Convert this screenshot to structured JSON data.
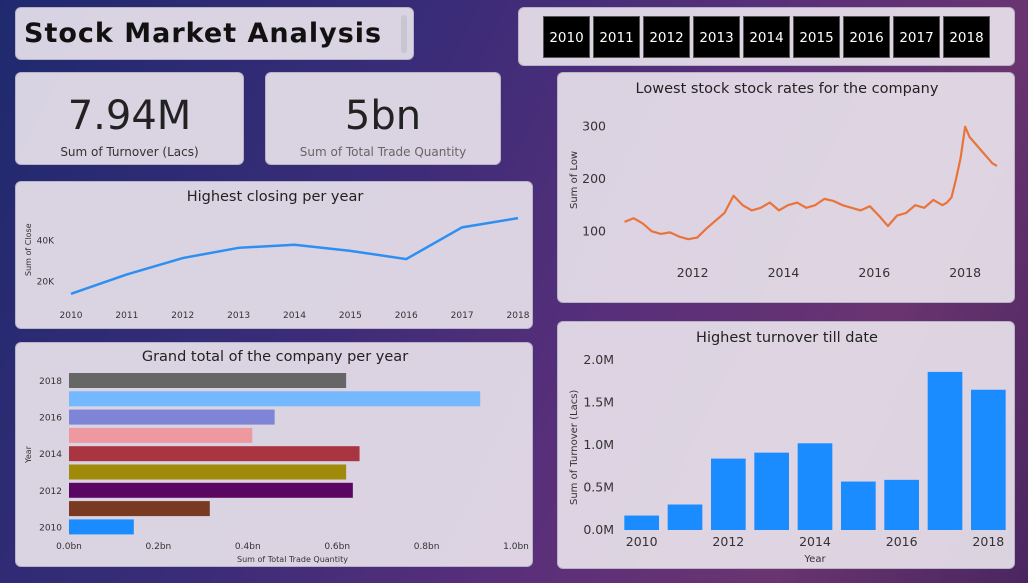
{
  "header": {
    "title": "Stock Market Analysis"
  },
  "year_slicer": {
    "years": [
      "2010",
      "2011",
      "2012",
      "2013",
      "2014",
      "2015",
      "2016",
      "2017",
      "2018"
    ]
  },
  "kpis": [
    {
      "value": "7.94M",
      "label": "Sum of Turnover (Lacs)"
    },
    {
      "value": "5bn",
      "label": "Sum of Total Trade Quantity"
    }
  ],
  "colors": {
    "line_blue": "#2e8ff2",
    "line_orange": "#e8743b",
    "bar_blue": "#1a8cff"
  },
  "chart_data": [
    {
      "id": "close",
      "type": "line",
      "title": "Highest closing per year",
      "ylabel": "Sum of Close",
      "xlabel": "",
      "x": [
        2010,
        2011,
        2012,
        2013,
        2014,
        2015,
        2016,
        2017,
        2018
      ],
      "x_ticks": [
        "2010",
        "2011",
        "2012",
        "2013",
        "2014",
        "2015",
        "2016",
        "2017",
        "2018"
      ],
      "values": [
        14000,
        23500,
        31500,
        36500,
        38000,
        35000,
        31000,
        46500,
        51000
      ],
      "y_ticks": [
        {
          "v": 20000,
          "label": "20K"
        },
        {
          "v": 40000,
          "label": "40K"
        }
      ],
      "ylim": [
        11000,
        54000
      ]
    },
    {
      "id": "grand",
      "type": "bar",
      "orientation": "horizontal",
      "title": "Grand total of the company per year",
      "xlabel": "Sum of Total Trade Quantity",
      "ylabel": "Year",
      "categories": [
        "2018",
        "2017",
        "2016",
        "2015",
        "2014",
        "2013",
        "2012",
        "2011",
        "2010"
      ],
      "values": [
        0.62,
        0.92,
        0.46,
        0.41,
        0.65,
        0.62,
        0.635,
        0.315,
        0.145
      ],
      "colors": [
        "#666666",
        "#74b9ff",
        "#7f85d6",
        "#ee98a0",
        "#a8353f",
        "#a08a0a",
        "#5a0764",
        "#7a3a22",
        "#1a8cff"
      ],
      "y_tick_labels": [
        "2018",
        "",
        "2016",
        "",
        "2014",
        "",
        "2012",
        "",
        "2010"
      ],
      "x_ticks": [
        {
          "v": 0,
          "label": "0.0bn"
        },
        {
          "v": 0.2,
          "label": "0.2bn"
        },
        {
          "v": 0.4,
          "label": "0.4bn"
        },
        {
          "v": 0.6,
          "label": "0.6bn"
        },
        {
          "v": 0.8,
          "label": "0.8bn"
        },
        {
          "v": 1.0,
          "label": "1.0bn"
        }
      ],
      "xlim": [
        0,
        1.0
      ]
    },
    {
      "id": "low",
      "type": "line",
      "title": "Lowest stock stock rates for the company",
      "ylabel": "Sum of Low",
      "xlabel": "",
      "x": [
        2010.5,
        2010.7,
        2010.9,
        2011.1,
        2011.3,
        2011.5,
        2011.7,
        2011.9,
        2012.1,
        2012.3,
        2012.5,
        2012.7,
        2012.9,
        2013.1,
        2013.3,
        2013.5,
        2013.7,
        2013.9,
        2014.1,
        2014.3,
        2014.5,
        2014.7,
        2014.9,
        2015.1,
        2015.3,
        2015.5,
        2015.7,
        2015.9,
        2016.1,
        2016.3,
        2016.5,
        2016.7,
        2016.9,
        2017.1,
        2017.3,
        2017.5,
        2017.6,
        2017.7,
        2017.8,
        2017.9,
        2018.0,
        2018.1,
        2018.2,
        2018.3,
        2018.4,
        2018.5,
        2018.6,
        2018.7
      ],
      "values": [
        118,
        125,
        115,
        100,
        95,
        98,
        90,
        85,
        88,
        105,
        120,
        135,
        168,
        150,
        140,
        145,
        155,
        140,
        150,
        155,
        145,
        150,
        162,
        158,
        150,
        145,
        140,
        148,
        130,
        110,
        130,
        135,
        150,
        145,
        160,
        150,
        155,
        165,
        200,
        240,
        300,
        280,
        270,
        260,
        250,
        240,
        230,
        225
      ],
      "x_ticks": [
        {
          "v": 2012,
          "label": "2012"
        },
        {
          "v": 2014,
          "label": "2014"
        },
        {
          "v": 2016,
          "label": "2016"
        },
        {
          "v": 2018,
          "label": "2018"
        }
      ],
      "y_ticks": [
        {
          "v": 100,
          "label": "100"
        },
        {
          "v": 200,
          "label": "200"
        },
        {
          "v": 300,
          "label": "300"
        }
      ],
      "xlim": [
        2010.4,
        2018.9
      ],
      "ylim": [
        70,
        330
      ]
    },
    {
      "id": "turn",
      "type": "bar",
      "title": "Highest turnover till date",
      "xlabel": "Year",
      "ylabel": "Sum of Turnover (Lacs)",
      "categories": [
        "2010",
        "2011",
        "2012",
        "2013",
        "2014",
        "2015",
        "2016",
        "2017",
        "2018"
      ],
      "values": [
        0.17,
        0.3,
        0.84,
        0.91,
        1.02,
        0.57,
        0.59,
        1.86,
        1.65
      ],
      "x_tick_labels": [
        "2010",
        "",
        "2012",
        "",
        "2014",
        "",
        "2016",
        "",
        "2018"
      ],
      "y_ticks": [
        {
          "v": 0,
          "label": "0.0M"
        },
        {
          "v": 0.5,
          "label": "0.5M"
        },
        {
          "v": 1.0,
          "label": "1.0M"
        },
        {
          "v": 1.5,
          "label": "1.5M"
        },
        {
          "v": 2.0,
          "label": "2.0M"
        }
      ],
      "ylim": [
        0,
        2.0
      ]
    }
  ]
}
